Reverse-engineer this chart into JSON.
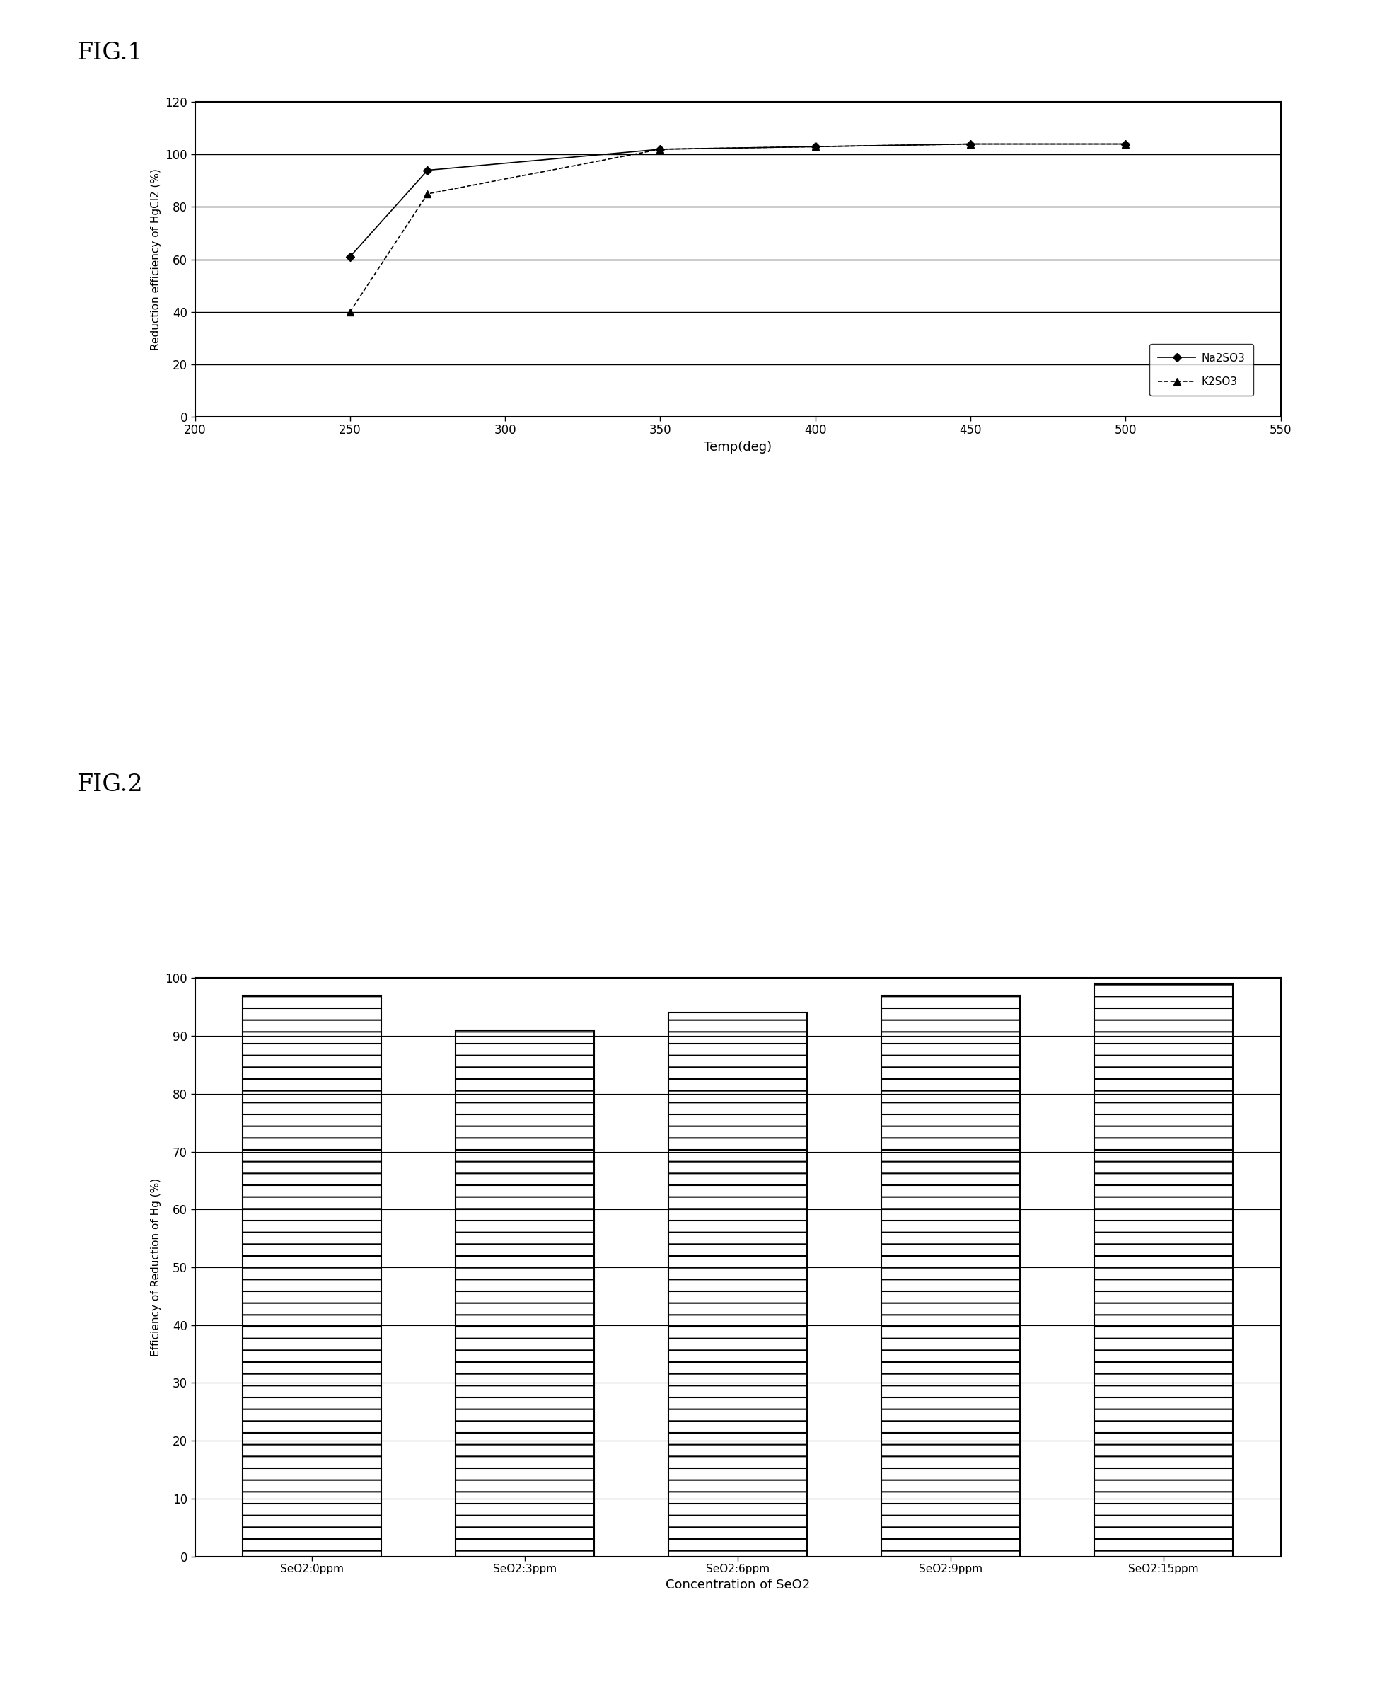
{
  "fig1": {
    "xlabel": "Temp(deg)",
    "ylabel": "Reduction efficiency of HgCl2 (%)",
    "xlim": [
      200,
      550
    ],
    "ylim": [
      0,
      120
    ],
    "xticks": [
      200,
      250,
      300,
      350,
      400,
      450,
      500,
      550
    ],
    "yticks": [
      0,
      20,
      40,
      60,
      80,
      100,
      120
    ],
    "na2so3_x": [
      250,
      275,
      350,
      400,
      450,
      500
    ],
    "na2so3_y": [
      61,
      94,
      102,
      103,
      104,
      104
    ],
    "k2so3_x": [
      250,
      275,
      350,
      400,
      450,
      500
    ],
    "k2so3_y": [
      40,
      85,
      102,
      103,
      104,
      104
    ],
    "legend_na2so3": "Na2SO3",
    "legend_k2so3": "K2SO3"
  },
  "fig2": {
    "xlabel": "Concentration of SeO2",
    "ylabel": "Efficiency of Reduction of Hg (%)",
    "categories": [
      "SeO2:0ppm",
      "SeO2:3ppm",
      "SeO2:6ppm",
      "SeO2:9ppm",
      "SeO2:15ppm"
    ],
    "values": [
      97,
      91,
      94,
      97,
      99
    ],
    "ylim": [
      0,
      100
    ],
    "yticks": [
      0,
      10,
      20,
      30,
      40,
      50,
      60,
      70,
      80,
      90,
      100
    ],
    "bar_color": "#ffffff",
    "bar_edgecolor": "#000000"
  },
  "fig1_label": "FIG.1",
  "fig2_label": "FIG.2",
  "background_color": "#ffffff",
  "text_color": "#000000"
}
